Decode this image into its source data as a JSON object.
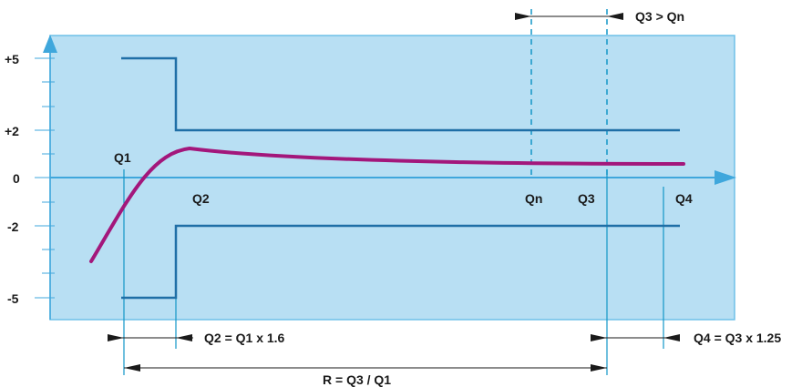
{
  "y_labels": {
    "p5": "+5",
    "p2": "+2",
    "zero": "0",
    "m2": "-2",
    "m5": "-5"
  },
  "flow_labels": {
    "q1": "Q1",
    "q2": "Q2",
    "qn": "Qn",
    "q3": "Q3",
    "q4": "Q4"
  },
  "annotations": {
    "q3_gt_qn": "Q3 > Qn",
    "q2_eq": "Q2 = Q1 x 1.6",
    "r_eq": "R = Q3 / Q1",
    "q4_eq": "Q4 = Q3 x 1.25"
  },
  "colors": {
    "panel": "#b8dff3",
    "axis": "#3fa7dc",
    "limit_lines": "#1f6fa6",
    "error_curve": "#a3177b",
    "reference_lines": "#1296c7"
  }
}
